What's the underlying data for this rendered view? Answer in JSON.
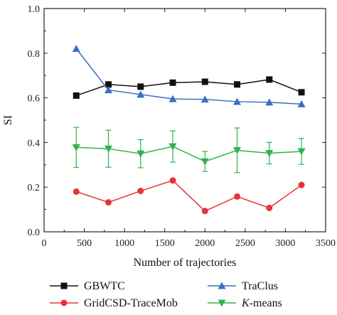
{
  "chart_data": {
    "type": "line",
    "xlabel": "Number of trajectories",
    "ylabel": "SI",
    "xlim": [
      0,
      3500
    ],
    "ylim": [
      0.0,
      1.0
    ],
    "x_ticks": [
      0,
      500,
      1000,
      1500,
      2000,
      2500,
      3000,
      3500
    ],
    "x_tick_labels": [
      "0",
      "500",
      "1000",
      "1500",
      "2000",
      "2500",
      "3000",
      "3500"
    ],
    "y_ticks": [
      0.0,
      0.2,
      0.4,
      0.6,
      0.8,
      1.0
    ],
    "y_tick_labels": [
      "0.0",
      "0.2",
      "0.4",
      "0.6",
      "0.8",
      "1.0"
    ],
    "grid": false,
    "legend_position": "bottom",
    "x": [
      400,
      800,
      1200,
      1600,
      2000,
      2400,
      2800,
      3200
    ],
    "series": [
      {
        "name": "GBWTC",
        "color": "#111111",
        "marker": "square",
        "values": [
          0.61,
          0.66,
          0.65,
          0.668,
          0.672,
          0.66,
          0.682,
          0.625
        ]
      },
      {
        "name": "TraClus",
        "color": "#3b6fc4",
        "marker": "triangle-up",
        "values": [
          0.82,
          0.635,
          0.615,
          0.595,
          0.593,
          0.583,
          0.58,
          0.572
        ]
      },
      {
        "name": "K-means",
        "name_prefix": "K",
        "name_suffix": "-means",
        "color": "#2fb34a",
        "marker": "triangle-down",
        "values": [
          0.378,
          0.372,
          0.35,
          0.382,
          0.315,
          0.365,
          0.352,
          0.36
        ],
        "error": [
          0.09,
          0.083,
          0.063,
          0.07,
          0.045,
          0.1,
          0.048,
          0.058
        ]
      },
      {
        "name": "GridCSD-TraceMob",
        "color": "#e8323c",
        "marker": "circle",
        "values": [
          0.18,
          0.132,
          0.183,
          0.23,
          0.093,
          0.158,
          0.107,
          0.21
        ]
      }
    ]
  }
}
